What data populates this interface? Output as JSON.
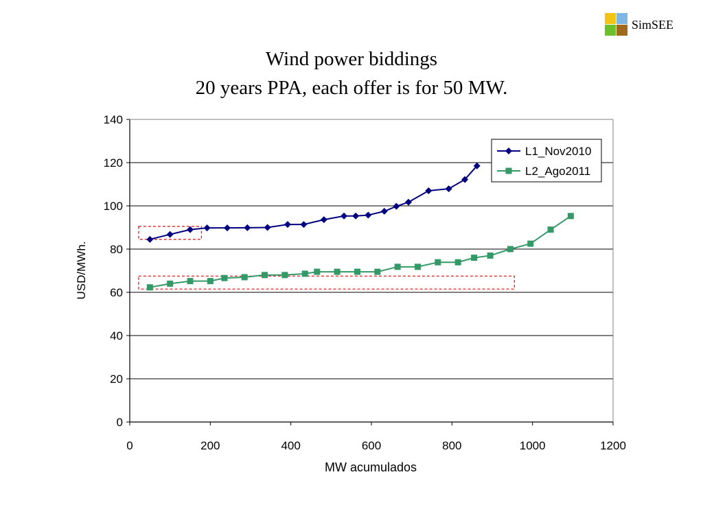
{
  "logo": {
    "text": "SimSEE",
    "colors": [
      "#f2c415",
      "#7eb6e4",
      "#6cc02c",
      "#a06a1c"
    ]
  },
  "title_lines": [
    "Wind power biddings",
    "20 years PPA, each offer is for 50 MW."
  ],
  "chart_data": {
    "type": "line",
    "xlabel": "MW acumulados",
    "ylabel": "USD/MWh.",
    "xlim": [
      0,
      1200
    ],
    "ylim": [
      0,
      140
    ],
    "xticks": [
      0,
      200,
      400,
      600,
      800,
      1000,
      1200
    ],
    "yticks": [
      0,
      20,
      40,
      60,
      80,
      100,
      120,
      140
    ],
    "grid": "horizontal",
    "legend_position": "top-right",
    "series": [
      {
        "name": "L1_Nov2010",
        "color": "#000080",
        "marker": "diamond",
        "x": [
          50,
          100,
          150,
          192,
          242,
          292,
          342,
          392,
          432,
          482,
          532,
          561,
          592,
          632,
          662,
          692,
          742,
          792,
          832,
          862
        ],
        "y": [
          84.5,
          86.8,
          89,
          89.8,
          89.8,
          89.9,
          90,
          91.4,
          91.4,
          93.6,
          95.3,
          95.3,
          95.7,
          97.5,
          99.8,
          101.7,
          107,
          107.9,
          112.2,
          118.5
        ]
      },
      {
        "name": "L2_Ago2011",
        "color": "#339966",
        "marker": "square",
        "x": [
          50,
          100,
          150,
          200,
          235,
          285,
          335,
          385,
          435,
          465,
          515,
          565,
          615,
          665,
          715,
          765,
          815,
          855,
          895,
          945,
          995,
          1045,
          1095
        ],
        "y": [
          62.3,
          64,
          65.2,
          65.2,
          66.6,
          67,
          68,
          68,
          68.6,
          69.5,
          69.5,
          69.5,
          69.5,
          71.8,
          71.8,
          73.9,
          73.9,
          76,
          77,
          80,
          82.5,
          89,
          95.3
        ]
      }
    ],
    "highlight_boxes": [
      {
        "x0": 22,
        "x1": 178,
        "y0": 84.5,
        "y1": 90.5
      },
      {
        "x0": 22,
        "x1": 955,
        "y0": 61.5,
        "y1": 67.5
      }
    ]
  }
}
